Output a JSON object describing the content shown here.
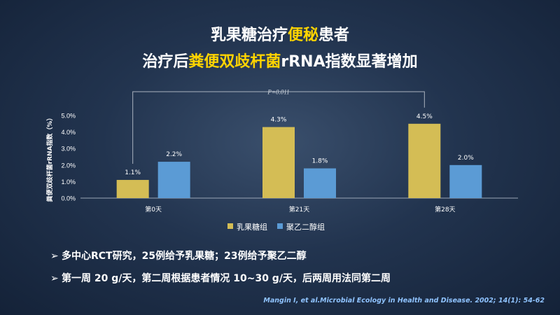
{
  "title": {
    "line1_pre": "乳果糖治疗",
    "line1_hl": "便秘",
    "line1_post": "患者",
    "line2_pre": "治疗后",
    "line2_hl": "粪便双歧杆菌",
    "line2_post": "rRNA指数显著增加"
  },
  "chart_data": {
    "type": "bar",
    "categories": [
      "第0天",
      "第21天",
      "第28天"
    ],
    "series": [
      {
        "name": "乳果糖组",
        "values": [
          1.1,
          4.3,
          4.5
        ],
        "labels": [
          "1.1%",
          "4.3%",
          "4.5%"
        ],
        "color": "#d4bd55"
      },
      {
        "name": "聚乙二醇组",
        "values": [
          2.2,
          1.8,
          2.0
        ],
        "labels": [
          "2.2%",
          "1.8%",
          "2.0%"
        ],
        "color": "#5b9bd5"
      }
    ],
    "ylabel": "粪便双歧杆菌rRNA指数（%）",
    "ylim": [
      0,
      5
    ],
    "yticks": [
      "0.0%",
      "1.0%",
      "2.0%",
      "3.0%",
      "4.0%",
      "5.0%"
    ],
    "annotation": "P=0.011",
    "legend": "bottom"
  },
  "bullets": [
    "多中心RCT研究，25例给予乳果糖；23例给予聚乙二醇",
    "第一周 20 g/天，第二周根据患者情况 10~30 g/天，后两周用法同第二周"
  ],
  "bullet_marker": "➢",
  "citation": "Mangin I, et al.Microbial Ecology in Health and Disease. 2002; 14(1): 54-62"
}
